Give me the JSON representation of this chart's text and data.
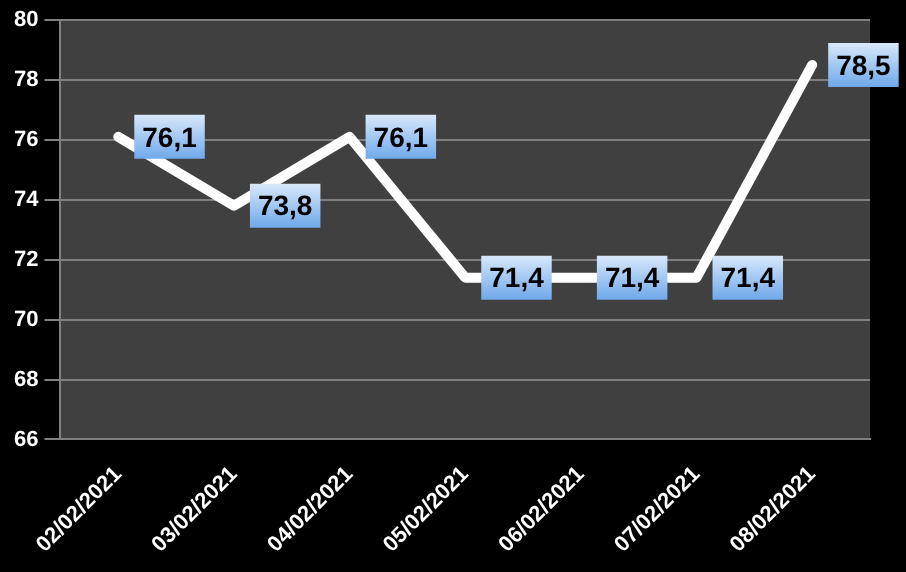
{
  "chart_data": {
    "type": "line",
    "categories": [
      "02/02/2021",
      "03/02/2021",
      "04/02/2021",
      "05/02/2021",
      "06/02/2021",
      "07/02/2021",
      "08/02/2021"
    ],
    "series": [
      {
        "color": "#ffffff",
        "values": [
          76.1,
          73.8,
          76.1,
          71.4,
          71.4,
          71.4,
          78.5
        ],
        "value_labels": [
          "76,1",
          "73,8",
          "76,1",
          "71,4",
          "71,4",
          "71,4",
          "78,5"
        ]
      }
    ],
    "ylim": [
      66,
      80
    ],
    "yticks": [
      66,
      68,
      70,
      72,
      74,
      76,
      78,
      80
    ],
    "grid": "y",
    "marker": "none",
    "line_style": "solid"
  }
}
